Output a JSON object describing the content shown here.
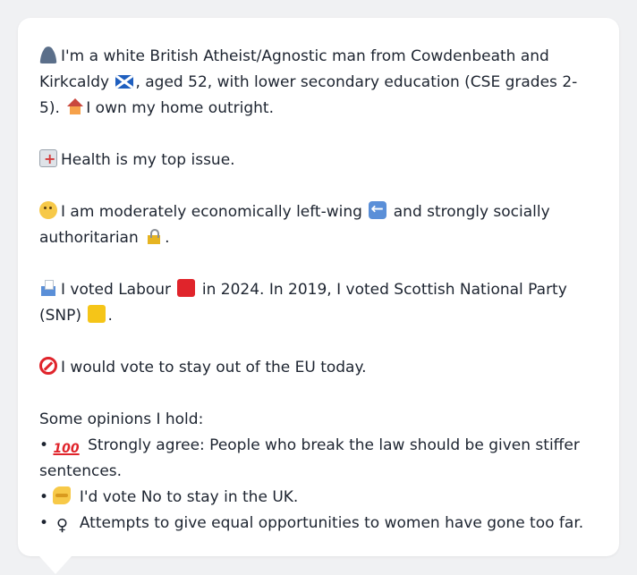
{
  "profile": {
    "intro_part1": "I'm a white British Atheist/Agnostic man from Cowdenbeath and Kirkcaldy",
    "intro_part2": ", aged 52, with lower secondary education (CSE grades 2-5).",
    "intro_part3": "I own my home outright.",
    "health": "Health is my top issue.",
    "economics_part1": "I am moderately economically left-wing",
    "economics_part2": "and strongly socially authoritarian",
    "economics_part3": ".",
    "voting_part1": "I voted Labour",
    "voting_part2": "in 2024. In 2019, I voted Scottish National Party (SNP)",
    "voting_part3": ".",
    "eu": "I would vote to stay out of the EU today.",
    "opinions_heading": "Some opinions I hold:",
    "opinions": [
      {
        "bullet": "•",
        "text": "Strongly agree: People who break the law should be given stiffer sentences."
      },
      {
        "bullet": "•",
        "text": "I'd vote No to stay in the UK."
      },
      {
        "bullet": "•",
        "text": "Attempts to give equal opportunities to women have gone too far."
      }
    ],
    "icons": {
      "person": "person-icon",
      "flag": "scotland-flag-icon",
      "house": "house-icon",
      "hospital": "hospital-icon",
      "thinking": "thinking-face-icon",
      "left": "left-arrow-icon",
      "lock": "lock-icon",
      "ballot": "ballot-box-icon",
      "labour": "red-square-icon",
      "snp": "yellow-square-icon",
      "no_entry": "no-entry-icon",
      "hundred": "hundred-points-icon",
      "handshake": "handshake-icon",
      "female": "female-sign-icon"
    },
    "hundred_glyph": "100",
    "female_glyph": "♀",
    "colors": {
      "labour": "#e0242b",
      "snp": "#f5c518",
      "card_bg": "#ffffff",
      "page_bg": "#f0f1f3",
      "text": "#1d2430"
    }
  }
}
